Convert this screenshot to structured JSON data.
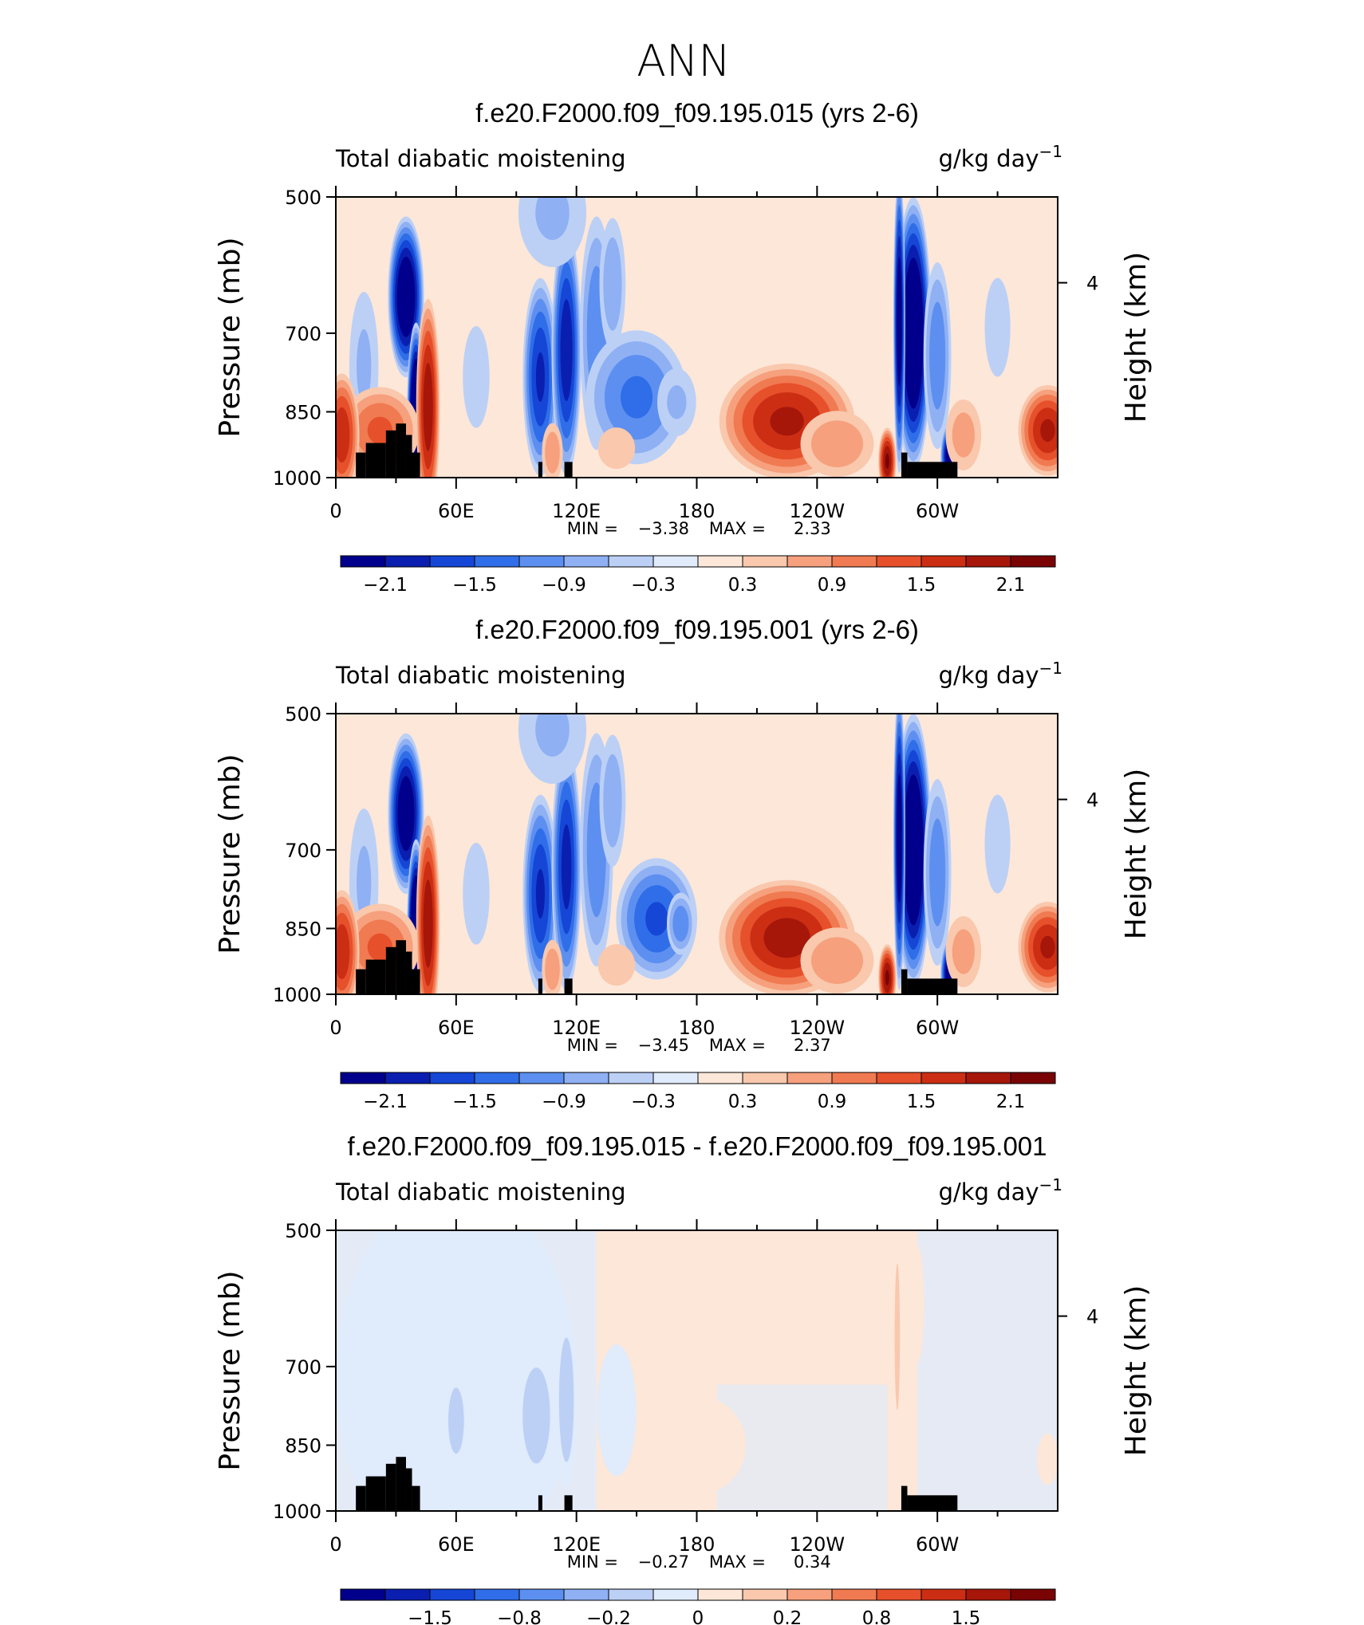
{
  "title": "ANN",
  "colorscale": [
    "#00008c",
    "#0a1fb0",
    "#1546d6",
    "#2f6ee8",
    "#5c8ff0",
    "#8fb0f3",
    "#bcd0f6",
    "#e0ebfb",
    "#fde7d8",
    "#f9c8ad",
    "#f6a07d",
    "#f07a51",
    "#e6502b",
    "#cc2e14",
    "#a6170a",
    "#7a0404"
  ],
  "chart_data": [
    {
      "type": "heatmap",
      "panel_title": "f.e20.F2000.f09_f09.195.015 (yrs 2-6)",
      "left_label": "Total diabatic moistening",
      "units": "g/kg day",
      "units_sup": "−1",
      "ylabel": "Pressure (mb)",
      "y2label": "Height (km)",
      "x_ticks": [
        "0",
        "60E",
        "120E",
        "180",
        "120W",
        "60W"
      ],
      "y_ticks": [
        "500",
        "700",
        "850",
        "1000"
      ],
      "y2_ticks": [
        "4"
      ],
      "min_label": "MIN =",
      "min": "−3.38",
      "max_label": "MAX =",
      "max": "2.33",
      "colorbar_labels": [
        "−2.1",
        "−1.5",
        "−0.9",
        "−0.3",
        "0.3",
        "0.9",
        "1.5",
        "2.1"
      ],
      "blobs": [
        {
          "lon": 35,
          "p": 640,
          "sx": 6,
          "sy": 95,
          "v": -2.7
        },
        {
          "lon": 14,
          "p": 760,
          "sx": 6,
          "sy": 110,
          "v": -0.7
        },
        {
          "lon": 40,
          "p": 860,
          "sx": 3,
          "sy": 110,
          "v": -3.2
        },
        {
          "lon": 22,
          "p": 890,
          "sx": 14,
          "sy": 55,
          "v": 1.3
        },
        {
          "lon": 46,
          "p": 840,
          "sx": 4,
          "sy": 130,
          "v": 2.1
        },
        {
          "lon": 3,
          "p": 900,
          "sx": 6,
          "sy": 75,
          "v": 1.8
        },
        {
          "lon": 70,
          "p": 780,
          "sx": 11,
          "sy": 150,
          "v": -0.35
        },
        {
          "lon": 102,
          "p": 780,
          "sx": 6,
          "sy": 120,
          "v": -1.9
        },
        {
          "lon": 115,
          "p": 730,
          "sx": 5,
          "sy": 150,
          "v": -2.1
        },
        {
          "lon": 130,
          "p": 700,
          "sx": 6,
          "sy": 150,
          "v": -1.2
        },
        {
          "lon": 138,
          "p": 620,
          "sx": 5,
          "sy": 90,
          "v": -0.9
        },
        {
          "lon": 150,
          "p": 820,
          "sx": 18,
          "sy": 85,
          "v": -1.3
        },
        {
          "lon": 170,
          "p": 830,
          "sx": 8,
          "sy": 50,
          "v": -0.7
        },
        {
          "lon": 108,
          "p": 520,
          "sx": 14,
          "sy": 80,
          "v": -0.7
        },
        {
          "lon": 108,
          "p": 940,
          "sx": 4,
          "sy": 40,
          "v": 0.9
        },
        {
          "lon": 140,
          "p": 930,
          "sx": 10,
          "sy": 40,
          "v": 0.45
        },
        {
          "lon": 225,
          "p": 870,
          "sx": 23,
          "sy": 70,
          "v": 1.9
        },
        {
          "lon": 250,
          "p": 920,
          "sx": 14,
          "sy": 45,
          "v": 0.9
        },
        {
          "lon": 275,
          "p": 960,
          "sx": 3,
          "sy": 40,
          "v": 2.2
        },
        {
          "lon": 288,
          "p": 700,
          "sx": 6,
          "sy": 160,
          "v": -2.9
        },
        {
          "lon": 281,
          "p": 680,
          "sx": 2,
          "sy": 180,
          "v": -2.5
        },
        {
          "lon": 300,
          "p": 740,
          "sx": 5,
          "sy": 120,
          "v": -1.2
        },
        {
          "lon": 306,
          "p": 950,
          "sx": 3,
          "sy": 40,
          "v": -2.5
        },
        {
          "lon": 313,
          "p": 900,
          "sx": 7,
          "sy": 50,
          "v": 0.8
        },
        {
          "lon": 355,
          "p": 890,
          "sx": 10,
          "sy": 55,
          "v": 1.9
        },
        {
          "lon": 330,
          "p": 690,
          "sx": 8,
          "sy": 110,
          "v": -0.4
        }
      ],
      "topo_lon": [
        [
          10,
          15,
          940
        ],
        [
          15,
          25,
          918
        ],
        [
          25,
          30,
          890
        ],
        [
          30,
          35,
          875
        ],
        [
          35,
          38,
          900
        ],
        [
          38,
          42,
          940
        ],
        [
          101,
          103,
          962
        ],
        [
          114,
          118,
          962
        ],
        [
          282,
          285,
          940
        ],
        [
          285,
          310,
          962
        ]
      ]
    },
    {
      "type": "heatmap",
      "panel_title": "f.e20.F2000.f09_f09.195.001 (yrs 2-6)",
      "left_label": "Total diabatic moistening",
      "units": "g/kg day",
      "units_sup": "−1",
      "ylabel": "Pressure (mb)",
      "y2label": "Height (km)",
      "x_ticks": [
        "0",
        "60E",
        "120E",
        "180",
        "120W",
        "60W"
      ],
      "y_ticks": [
        "500",
        "700",
        "850",
        "1000"
      ],
      "y2_ticks": [
        "4"
      ],
      "min_label": "MIN =",
      "min": "−3.45",
      "max_label": "MAX =",
      "max": "2.37",
      "colorbar_labels": [
        "−2.1",
        "−1.5",
        "−0.9",
        "−0.3",
        "0.3",
        "0.9",
        "1.5",
        "2.1"
      ],
      "blobs": [
        {
          "lon": 35,
          "p": 640,
          "sx": 6,
          "sy": 95,
          "v": -2.6
        },
        {
          "lon": 14,
          "p": 760,
          "sx": 6,
          "sy": 110,
          "v": -0.7
        },
        {
          "lon": 40,
          "p": 860,
          "sx": 3,
          "sy": 110,
          "v": -3.2
        },
        {
          "lon": 22,
          "p": 890,
          "sx": 14,
          "sy": 55,
          "v": 1.3
        },
        {
          "lon": 46,
          "p": 840,
          "sx": 4,
          "sy": 130,
          "v": 2.1
        },
        {
          "lon": 3,
          "p": 900,
          "sx": 6,
          "sy": 75,
          "v": 1.8
        },
        {
          "lon": 70,
          "p": 780,
          "sx": 11,
          "sy": 150,
          "v": -0.35
        },
        {
          "lon": 102,
          "p": 780,
          "sx": 6,
          "sy": 120,
          "v": -1.9
        },
        {
          "lon": 115,
          "p": 730,
          "sx": 5,
          "sy": 150,
          "v": -2.0
        },
        {
          "lon": 130,
          "p": 700,
          "sx": 6,
          "sy": 150,
          "v": -1.2
        },
        {
          "lon": 138,
          "p": 620,
          "sx": 5,
          "sy": 90,
          "v": -0.9
        },
        {
          "lon": 160,
          "p": 830,
          "sx": 14,
          "sy": 75,
          "v": -1.6
        },
        {
          "lon": 172,
          "p": 840,
          "sx": 5,
          "sy": 40,
          "v": -1.2
        },
        {
          "lon": 108,
          "p": 520,
          "sx": 14,
          "sy": 80,
          "v": -0.7
        },
        {
          "lon": 108,
          "p": 940,
          "sx": 4,
          "sy": 40,
          "v": 0.9
        },
        {
          "lon": 140,
          "p": 930,
          "sx": 10,
          "sy": 40,
          "v": 0.45
        },
        {
          "lon": 225,
          "p": 870,
          "sx": 23,
          "sy": 70,
          "v": 2.0
        },
        {
          "lon": 250,
          "p": 920,
          "sx": 14,
          "sy": 45,
          "v": 0.9
        },
        {
          "lon": 275,
          "p": 960,
          "sx": 3,
          "sy": 40,
          "v": 2.2
        },
        {
          "lon": 288,
          "p": 700,
          "sx": 6,
          "sy": 160,
          "v": -2.9
        },
        {
          "lon": 281,
          "p": 680,
          "sx": 2,
          "sy": 180,
          "v": -2.5
        },
        {
          "lon": 300,
          "p": 740,
          "sx": 5,
          "sy": 120,
          "v": -1.2
        },
        {
          "lon": 306,
          "p": 950,
          "sx": 3,
          "sy": 40,
          "v": -2.5
        },
        {
          "lon": 313,
          "p": 900,
          "sx": 7,
          "sy": 50,
          "v": 0.8
        },
        {
          "lon": 355,
          "p": 890,
          "sx": 10,
          "sy": 55,
          "v": 1.9
        },
        {
          "lon": 330,
          "p": 690,
          "sx": 8,
          "sy": 110,
          "v": -0.4
        }
      ],
      "topo_lon": [
        [
          10,
          15,
          940
        ],
        [
          15,
          25,
          918
        ],
        [
          25,
          30,
          890
        ],
        [
          30,
          35,
          875
        ],
        [
          35,
          38,
          900
        ],
        [
          38,
          42,
          940
        ],
        [
          101,
          103,
          962
        ],
        [
          114,
          118,
          962
        ],
        [
          282,
          285,
          940
        ],
        [
          285,
          310,
          962
        ]
      ]
    },
    {
      "type": "heatmap",
      "panel_title": "f.e20.F2000.f09_f09.195.015 - f.e20.F2000.f09_f09.195.001",
      "left_label": "Total diabatic moistening",
      "units": "g/kg day",
      "units_sup": "−1",
      "ylabel": "Pressure (mb)",
      "y2label": "Height (km)",
      "x_ticks": [
        "0",
        "60E",
        "120E",
        "180",
        "120W",
        "60W"
      ],
      "y_ticks": [
        "500",
        "700",
        "850",
        "1000"
      ],
      "y2_ticks": [
        "4"
      ],
      "min_label": "MIN =",
      "min": "−0.27",
      "max_label": "MAX =",
      "max": "0.34",
      "colorbar_labels": [
        "−1.5",
        "−0.8",
        "−0.2",
        "0",
        "0.2",
        "0.8",
        "1.5"
      ],
      "blobs": [
        {
          "lon": 60,
          "p": 720,
          "sx": 70,
          "sy": 400,
          "v": -0.07
        },
        {
          "lon": 200,
          "p": 560,
          "sx": 60,
          "sy": 120,
          "v": 0.05
        },
        {
          "lon": 180,
          "p": 850,
          "sx": 25,
          "sy": 90,
          "v": 0.08
        },
        {
          "lon": 60,
          "p": 800,
          "sx": 6,
          "sy": 90,
          "v": -0.12
        },
        {
          "lon": 100,
          "p": 790,
          "sx": 8,
          "sy": 100,
          "v": -0.14
        },
        {
          "lon": 115,
          "p": 760,
          "sx": 4,
          "sy": 120,
          "v": -0.15
        },
        {
          "lon": 140,
          "p": 780,
          "sx": 10,
          "sy": 120,
          "v": -0.08
        },
        {
          "lon": 20,
          "p": 700,
          "sx": 8,
          "sy": 150,
          "v": -0.06
        },
        {
          "lon": 280,
          "p": 650,
          "sx": 2,
          "sy": 200,
          "v": 0.12
        },
        {
          "lon": 290,
          "p": 600,
          "sx": 5,
          "sy": 160,
          "v": 0.06
        },
        {
          "lon": 320,
          "p": 760,
          "sx": 25,
          "sy": 200,
          "v": -0.05
        },
        {
          "lon": 355,
          "p": 880,
          "sx": 8,
          "sy": 70,
          "v": 0.06
        },
        {
          "lon": 240,
          "p": 860,
          "sx": 25,
          "sy": 100,
          "v": -0.05
        }
      ],
      "topo_lon": [
        [
          10,
          15,
          940
        ],
        [
          15,
          25,
          918
        ],
        [
          25,
          30,
          890
        ],
        [
          30,
          35,
          875
        ],
        [
          35,
          38,
          900
        ],
        [
          38,
          42,
          940
        ],
        [
          101,
          103,
          962
        ],
        [
          114,
          118,
          962
        ],
        [
          282,
          285,
          940
        ],
        [
          285,
          310,
          962
        ]
      ]
    }
  ]
}
